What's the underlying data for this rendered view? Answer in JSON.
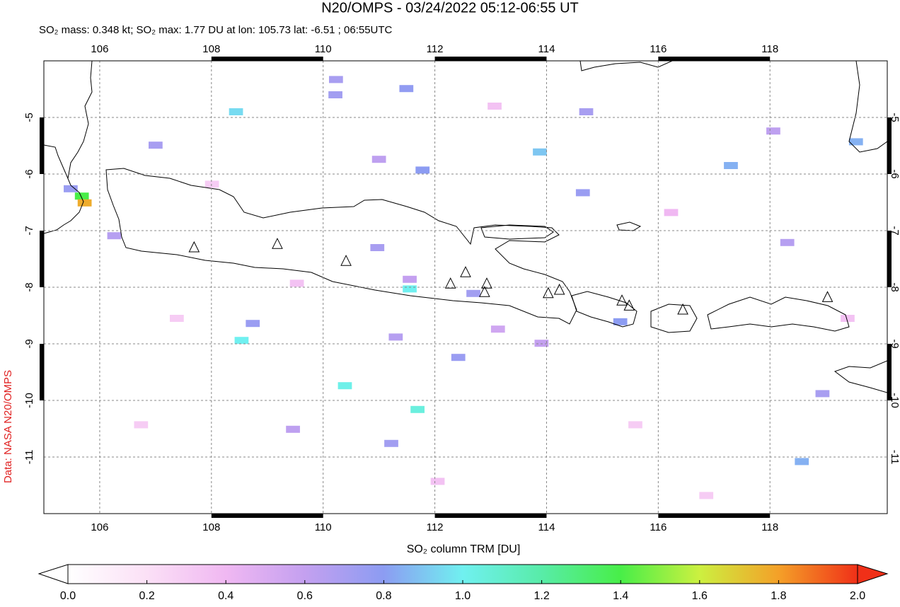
{
  "title": "N20/OMPS - 03/24/2022 05:12-06:55 UT",
  "subtitle": "SO₂ mass: 0.348 kt; SO₂ max: 1.77 DU at lon: 105.73 lat: -6.51 ; 06:55UTC",
  "credit": "Data: NASA N20/OMPS",
  "map": {
    "xlim": [
      105,
      120.1
    ],
    "ylim": [
      -12,
      -4
    ],
    "xticks": [
      106,
      108,
      110,
      112,
      114,
      116,
      118
    ],
    "yticks": [
      -5,
      -6,
      -7,
      -8,
      -9,
      -10,
      -11
    ],
    "grid": true,
    "volcanoes": [
      {
        "lon": 107.69,
        "lat": -7.3
      },
      {
        "lon": 109.18,
        "lat": -7.24
      },
      {
        "lon": 110.41,
        "lat": -7.54
      },
      {
        "lon": 112.28,
        "lat": -7.94
      },
      {
        "lon": 112.55,
        "lat": -7.74
      },
      {
        "lon": 112.93,
        "lat": -7.94
      },
      {
        "lon": 112.89,
        "lat": -8.09
      },
      {
        "lon": 114.03,
        "lat": -8.11
      },
      {
        "lon": 114.23,
        "lat": -8.05
      },
      {
        "lon": 115.35,
        "lat": -8.24
      },
      {
        "lon": 115.48,
        "lat": -8.33
      },
      {
        "lon": 116.44,
        "lat": -8.4
      },
      {
        "lon": 119.03,
        "lat": -8.18
      }
    ],
    "pixels": [
      {
        "lon": 105.48,
        "lat": -6.26,
        "value": 0.75
      },
      {
        "lon": 105.68,
        "lat": -6.39,
        "value": 1.4
      },
      {
        "lon": 105.73,
        "lat": -6.51,
        "value": 1.77
      },
      {
        "lon": 108.44,
        "lat": -4.9,
        "value": 0.95
      },
      {
        "lon": 110.23,
        "lat": -4.33,
        "value": 0.7
      },
      {
        "lon": 110.22,
        "lat": -4.6,
        "value": 0.72
      },
      {
        "lon": 111.49,
        "lat": -4.49,
        "value": 0.78
      },
      {
        "lon": 111.78,
        "lat": -5.93,
        "value": 0.8
      },
      {
        "lon": 113.88,
        "lat": -5.61,
        "value": 0.9
      },
      {
        "lon": 111.0,
        "lat": -5.74,
        "value": 0.62
      },
      {
        "lon": 110.97,
        "lat": -7.3,
        "value": 0.7
      },
      {
        "lon": 111.55,
        "lat": -8.03,
        "value": 1.0
      },
      {
        "lon": 111.55,
        "lat": -7.86,
        "value": 0.6
      },
      {
        "lon": 108.74,
        "lat": -8.64,
        "value": 0.75
      },
      {
        "lon": 108.54,
        "lat": -8.94,
        "value": 1.0
      },
      {
        "lon": 110.39,
        "lat": -9.74,
        "value": 1.02
      },
      {
        "lon": 111.69,
        "lat": -10.16,
        "value": 1.05
      },
      {
        "lon": 111.3,
        "lat": -8.88,
        "value": 0.65
      },
      {
        "lon": 112.42,
        "lat": -9.24,
        "value": 0.75
      },
      {
        "lon": 111.22,
        "lat": -10.76,
        "value": 0.72
      },
      {
        "lon": 109.46,
        "lat": -10.51,
        "value": 0.62
      },
      {
        "lon": 107.0,
        "lat": -5.49,
        "value": 0.7
      },
      {
        "lon": 114.71,
        "lat": -4.9,
        "value": 0.7
      },
      {
        "lon": 114.65,
        "lat": -6.33,
        "value": 0.75
      },
      {
        "lon": 112.69,
        "lat": -8.11,
        "value": 0.72
      },
      {
        "lon": 115.32,
        "lat": -8.61,
        "value": 0.8
      },
      {
        "lon": 117.3,
        "lat": -5.85,
        "value": 0.85
      },
      {
        "lon": 118.31,
        "lat": -7.21,
        "value": 0.65
      },
      {
        "lon": 119.54,
        "lat": -5.43,
        "value": 0.85
      },
      {
        "lon": 118.57,
        "lat": -11.08,
        "value": 0.85
      },
      {
        "lon": 118.94,
        "lat": -9.88,
        "value": 0.7
      },
      {
        "lon": 106.26,
        "lat": -7.09,
        "value": 0.65
      },
      {
        "lon": 113.91,
        "lat": -8.99,
        "value": 0.6
      },
      {
        "lon": 118.06,
        "lat": -5.24,
        "value": 0.62
      },
      {
        "lon": 113.13,
        "lat": -8.74,
        "value": 0.55
      },
      {
        "lon": 108.01,
        "lat": -6.18,
        "value": 0.3
      },
      {
        "lon": 109.53,
        "lat": -7.93,
        "value": 0.35
      },
      {
        "lon": 115.59,
        "lat": -10.43,
        "value": 0.3
      },
      {
        "lon": 116.86,
        "lat": -11.68,
        "value": 0.3
      },
      {
        "lon": 106.74,
        "lat": -10.43,
        "value": 0.3
      },
      {
        "lon": 113.07,
        "lat": -4.8,
        "value": 0.35
      },
      {
        "lon": 116.23,
        "lat": -6.68,
        "value": 0.4
      },
      {
        "lon": 112.05,
        "lat": -11.43,
        "value": 0.35
      },
      {
        "lon": 107.38,
        "lat": -8.55,
        "value": 0.3
      },
      {
        "lon": 119.39,
        "lat": -8.55,
        "value": 0.35
      }
    ]
  },
  "colorbar": {
    "label": "SO₂ column TRM [DU]",
    "lim": [
      0,
      2
    ],
    "ticks": [
      {
        "value": 0,
        "label": "0.0"
      },
      {
        "value": 0.2,
        "label": "0.2"
      },
      {
        "value": 0.4,
        "label": "0.4"
      },
      {
        "value": 0.6,
        "label": "0.6"
      },
      {
        "value": 0.8,
        "label": "0.8"
      },
      {
        "value": 1,
        "label": "1.0"
      },
      {
        "value": 1.2,
        "label": "1.2"
      },
      {
        "value": 1.4,
        "label": "1.4"
      },
      {
        "value": 1.6,
        "label": "1.6"
      },
      {
        "value": 1.8,
        "label": "1.8"
      },
      {
        "value": 2,
        "label": "2.0"
      }
    ],
    "colors": [
      "#ffffff",
      "#fbe0f6",
      "#f0b8f2",
      "#c4a0f0",
      "#8c9cf2",
      "#70f0f0",
      "#58eca8",
      "#48ee48",
      "#ccf040",
      "#f4a028",
      "#f03018"
    ]
  }
}
